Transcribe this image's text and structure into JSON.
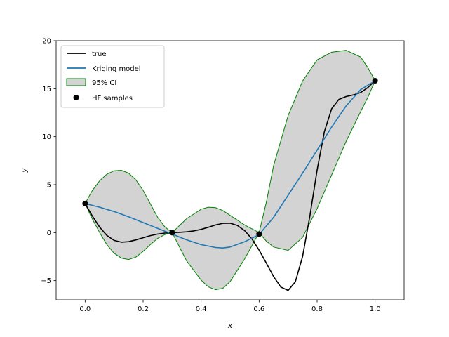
{
  "chart_data": {
    "type": "line",
    "title": "",
    "xlabel": "x",
    "ylabel": "y",
    "xlim": [
      -0.1,
      1.1
    ],
    "ylim": [
      -7,
      20
    ],
    "xticks": [
      0.0,
      0.2,
      0.4,
      0.6,
      0.8,
      1.0
    ],
    "xtick_labels": [
      "0.0",
      "0.2",
      "0.4",
      "0.6",
      "0.8",
      "1.0"
    ],
    "yticks": [
      -5,
      0,
      5,
      10,
      15,
      20
    ],
    "ytick_labels": [
      "−5",
      "0",
      "5",
      "10",
      "15",
      "20"
    ],
    "grid": false,
    "legend_position": "top-left",
    "series": [
      {
        "name": "true",
        "kind": "line",
        "color": "#000000",
        "x": [
          0.0,
          0.025,
          0.05,
          0.075,
          0.1,
          0.125,
          0.15,
          0.175,
          0.2,
          0.225,
          0.25,
          0.275,
          0.3,
          0.325,
          0.35,
          0.375,
          0.4,
          0.425,
          0.45,
          0.475,
          0.5,
          0.525,
          0.55,
          0.575,
          0.6,
          0.625,
          0.65,
          0.675,
          0.7,
          0.725,
          0.75,
          0.775,
          0.8,
          0.825,
          0.85,
          0.875,
          0.9,
          0.925,
          0.95,
          0.975,
          1.0
        ],
        "y": [
          3.03,
          1.72,
          0.57,
          -0.29,
          -0.81,
          -0.99,
          -0.94,
          -0.76,
          -0.53,
          -0.31,
          -0.15,
          -0.05,
          0.0,
          0.03,
          0.08,
          0.18,
          0.34,
          0.56,
          0.8,
          0.97,
          0.98,
          0.75,
          0.21,
          -0.65,
          -1.82,
          -3.19,
          -4.58,
          -5.67,
          -6.02,
          -5.12,
          -2.49,
          1.73,
          6.52,
          10.5,
          12.91,
          13.88,
          14.18,
          14.35,
          14.59,
          15.12,
          15.83
        ]
      },
      {
        "name": "Kriging model",
        "kind": "line",
        "color": "#1f77b4",
        "x": [
          0.0,
          0.05,
          0.1,
          0.15,
          0.2,
          0.25,
          0.3,
          0.35,
          0.4,
          0.45,
          0.475,
          0.5,
          0.55,
          0.6,
          0.65,
          0.7,
          0.75,
          0.8,
          0.85,
          0.9,
          0.95,
          1.0
        ],
        "y": [
          3.03,
          2.65,
          2.2,
          1.65,
          1.05,
          0.45,
          -0.15,
          -0.75,
          -1.25,
          -1.55,
          -1.6,
          -1.5,
          -0.95,
          -0.2,
          1.6,
          3.9,
          6.2,
          8.6,
          11.0,
          13.2,
          14.9,
          15.83
        ]
      },
      {
        "name": "95% CI",
        "kind": "band",
        "color": "#008000",
        "fill": "#d3d3d3",
        "x": [
          0.0,
          0.025,
          0.05,
          0.075,
          0.1,
          0.125,
          0.15,
          0.175,
          0.2,
          0.225,
          0.25,
          0.275,
          0.3,
          0.35,
          0.4,
          0.425,
          0.45,
          0.475,
          0.5,
          0.55,
          0.6,
          0.625,
          0.65,
          0.7,
          0.75,
          0.8,
          0.85,
          0.9,
          0.95,
          0.975,
          1.0
        ],
        "upper": [
          3.03,
          4.4,
          5.4,
          6.1,
          6.45,
          6.5,
          6.2,
          5.5,
          4.4,
          3.0,
          1.6,
          0.6,
          0.0,
          1.45,
          2.45,
          2.65,
          2.6,
          2.3,
          1.8,
          0.8,
          0.0,
          3.2,
          7.0,
          12.2,
          15.8,
          18.0,
          18.8,
          19.0,
          18.3,
          17.2,
          15.83
        ],
        "lower": [
          3.03,
          1.4,
          0.0,
          -1.25,
          -2.15,
          -2.65,
          -2.8,
          -2.55,
          -1.95,
          -1.25,
          -0.6,
          -0.2,
          0.0,
          -2.95,
          -4.95,
          -5.65,
          -5.95,
          -5.8,
          -5.1,
          -2.75,
          0.0,
          -0.9,
          -1.5,
          -1.85,
          -0.5,
          2.5,
          6.0,
          9.5,
          12.6,
          14.1,
          15.83
        ]
      },
      {
        "name": "HF samples",
        "kind": "scatter",
        "color": "#000000",
        "x": [
          0.0,
          0.3,
          0.6,
          1.0
        ],
        "y": [
          3.03,
          0.0,
          -0.15,
          15.83
        ]
      }
    ]
  }
}
